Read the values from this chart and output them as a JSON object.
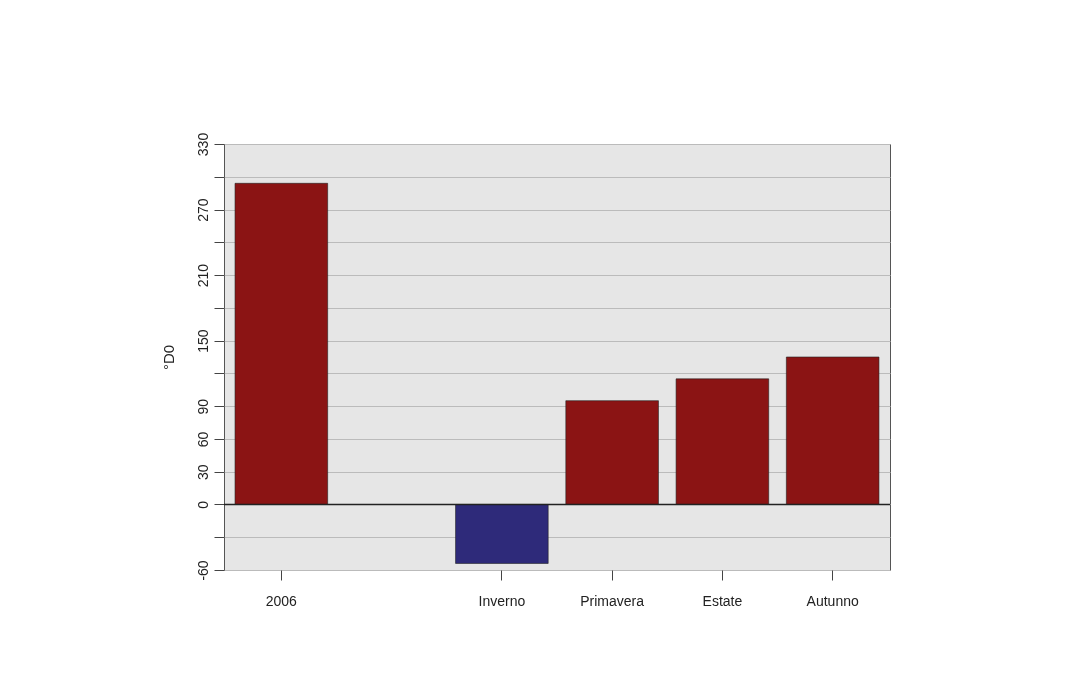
{
  "chart_data": {
    "type": "bar",
    "ylabel": "°D0",
    "categories": [
      "2006",
      null,
      "Inverno",
      "Primavera",
      "Estate",
      "Autunno"
    ],
    "values": [
      294,
      null,
      -54,
      95,
      115,
      135
    ],
    "colors": [
      "#8b1414",
      "#8b1414",
      "#2e2a7a",
      "#8b1414",
      "#8b1414",
      "#8b1414"
    ],
    "ylim": [
      -60,
      330
    ],
    "yticks": [
      -60,
      {
        "value": -30,
        "label": null
      },
      0,
      30,
      60,
      90,
      {
        "value": 120,
        "label": null
      },
      150,
      {
        "value": 180,
        "label": null
      },
      210,
      {
        "value": 240,
        "label": null
      },
      270,
      {
        "value": 300,
        "label": null
      },
      330
    ],
    "grid": "y",
    "ref_lines": [
      {
        "axis": "y",
        "value": 0,
        "color": "#222222"
      }
    ]
  }
}
